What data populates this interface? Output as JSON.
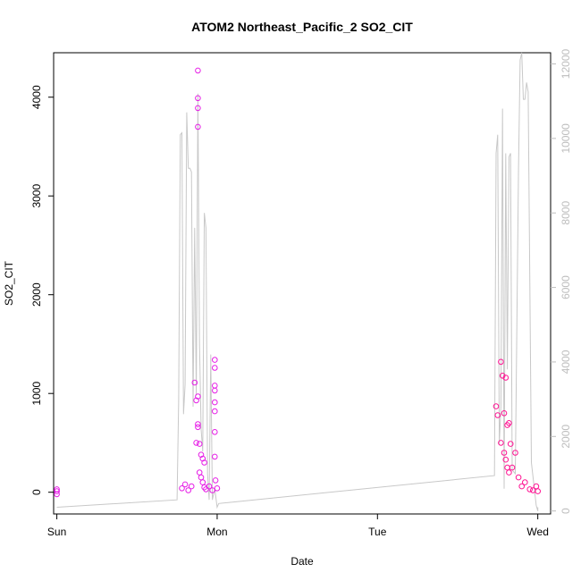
{
  "chart_data": {
    "type": "scatter",
    "title": "ATOM2 Northeast_Pacific_2 SO2_CIT",
    "xlabel": "Date",
    "ylabel": "SO2_CIT",
    "x_categories": [
      "Sun",
      "Mon",
      "Tue",
      "Wed"
    ],
    "xlim": [
      -0.02,
      3.08
    ],
    "ylim": [
      -220,
      4450
    ],
    "yticks": [
      0,
      1000,
      2000,
      3000,
      4000
    ],
    "y2lim": [
      -80,
      12300
    ],
    "y2ticks": [
      0,
      2000,
      4000,
      6000,
      8000,
      10000,
      12000
    ],
    "grid": false,
    "colors": {
      "early_points": "#e61ee6",
      "late_points": "#ff1493",
      "secondary_line": "#c8c8c8",
      "secondary_axis": "#bdbdbd"
    },
    "series": [
      {
        "values": [
          {
            "x": 0.0,
            "y": 10
          },
          {
            "x": 0.0,
            "y": -20
          },
          {
            "x": 0.0,
            "y": 30
          },
          {
            "x": 0.78,
            "y": 40
          },
          {
            "x": 0.8,
            "y": 80
          },
          {
            "x": 0.82,
            "y": 20
          },
          {
            "x": 0.84,
            "y": 60
          },
          {
            "x": 0.86,
            "y": 1110
          },
          {
            "x": 0.87,
            "y": 930
          },
          {
            "x": 0.88,
            "y": 4270
          },
          {
            "x": 0.88,
            "y": 3990
          },
          {
            "x": 0.88,
            "y": 3890
          },
          {
            "x": 0.88,
            "y": 3700
          },
          {
            "x": 0.88,
            "y": 970
          },
          {
            "x": 0.88,
            "y": 690
          },
          {
            "x": 0.88,
            "y": 660
          },
          {
            "x": 0.87,
            "y": 500
          },
          {
            "x": 0.89,
            "y": 490
          },
          {
            "x": 0.9,
            "y": 380
          },
          {
            "x": 0.91,
            "y": 340
          },
          {
            "x": 0.92,
            "y": 300
          },
          {
            "x": 0.89,
            "y": 200
          },
          {
            "x": 0.9,
            "y": 150
          },
          {
            "x": 0.91,
            "y": 100
          },
          {
            "x": 0.92,
            "y": 50
          },
          {
            "x": 0.93,
            "y": 30
          },
          {
            "x": 0.95,
            "y": 60
          },
          {
            "x": 0.97,
            "y": 20
          },
          {
            "x": 0.985,
            "y": 1340
          },
          {
            "x": 0.985,
            "y": 1260
          },
          {
            "x": 0.985,
            "y": 1080
          },
          {
            "x": 0.985,
            "y": 1030
          },
          {
            "x": 0.985,
            "y": 910
          },
          {
            "x": 0.985,
            "y": 820
          },
          {
            "x": 0.985,
            "y": 610
          },
          {
            "x": 0.985,
            "y": 360
          },
          {
            "x": 0.99,
            "y": 120
          },
          {
            "x": 1.0,
            "y": 40
          }
        ]
      },
      {
        "values": [
          {
            "x": 2.74,
            "y": 870
          },
          {
            "x": 2.75,
            "y": 780
          },
          {
            "x": 2.77,
            "y": 1320
          },
          {
            "x": 2.78,
            "y": 1180
          },
          {
            "x": 2.79,
            "y": 800
          },
          {
            "x": 2.8,
            "y": 1160
          },
          {
            "x": 2.81,
            "y": 680
          },
          {
            "x": 2.82,
            "y": 700
          },
          {
            "x": 2.83,
            "y": 490
          },
          {
            "x": 2.77,
            "y": 500
          },
          {
            "x": 2.79,
            "y": 400
          },
          {
            "x": 2.8,
            "y": 330
          },
          {
            "x": 2.81,
            "y": 250
          },
          {
            "x": 2.82,
            "y": 200
          },
          {
            "x": 2.84,
            "y": 250
          },
          {
            "x": 2.86,
            "y": 400
          },
          {
            "x": 2.88,
            "y": 150
          },
          {
            "x": 2.9,
            "y": 60
          },
          {
            "x": 2.92,
            "y": 100
          },
          {
            "x": 2.95,
            "y": 30
          },
          {
            "x": 2.97,
            "y": 20
          },
          {
            "x": 2.99,
            "y": 60
          },
          {
            "x": 3.0,
            "y": 10
          }
        ]
      },
      {
        "axis": "right",
        "values": [
          {
            "x": 0.0,
            "y": 100
          },
          {
            "x": 0.75,
            "y": 300
          },
          {
            "x": 0.76,
            "y": 3000
          },
          {
            "x": 0.77,
            "y": 10100
          },
          {
            "x": 0.78,
            "y": 10150
          },
          {
            "x": 0.79,
            "y": 2600
          },
          {
            "x": 0.8,
            "y": 3400
          },
          {
            "x": 0.81,
            "y": 10700
          },
          {
            "x": 0.82,
            "y": 9200
          },
          {
            "x": 0.83,
            "y": 9200
          },
          {
            "x": 0.84,
            "y": 9100
          },
          {
            "x": 0.85,
            "y": 2800
          },
          {
            "x": 0.86,
            "y": 7600
          },
          {
            "x": 0.87,
            "y": 3100
          },
          {
            "x": 0.88,
            "y": 11200
          },
          {
            "x": 0.89,
            "y": 4500
          },
          {
            "x": 0.9,
            "y": 2200
          },
          {
            "x": 0.91,
            "y": 1600
          },
          {
            "x": 0.92,
            "y": 8000
          },
          {
            "x": 0.93,
            "y": 7600
          },
          {
            "x": 0.94,
            "y": 1000
          },
          {
            "x": 0.95,
            "y": 300
          },
          {
            "x": 0.96,
            "y": 4200
          },
          {
            "x": 0.97,
            "y": 300
          },
          {
            "x": 0.985,
            "y": 600
          },
          {
            "x": 1.0,
            "y": 100
          },
          {
            "x": 1.01,
            "y": 200
          },
          {
            "x": 2.73,
            "y": 950
          },
          {
            "x": 2.74,
            "y": 9600
          },
          {
            "x": 2.75,
            "y": 10100
          },
          {
            "x": 2.76,
            "y": 1800
          },
          {
            "x": 2.77,
            "y": 2800
          },
          {
            "x": 2.78,
            "y": 10800
          },
          {
            "x": 2.79,
            "y": 600
          },
          {
            "x": 2.8,
            "y": 9600
          },
          {
            "x": 2.81,
            "y": 3800
          },
          {
            "x": 2.82,
            "y": 9500
          },
          {
            "x": 2.83,
            "y": 9600
          },
          {
            "x": 2.84,
            "y": 1100
          },
          {
            "x": 2.86,
            "y": 1000
          },
          {
            "x": 2.88,
            "y": 9200
          },
          {
            "x": 2.89,
            "y": 12100
          },
          {
            "x": 2.9,
            "y": 12300
          },
          {
            "x": 2.91,
            "y": 11050
          },
          {
            "x": 2.92,
            "y": 11050
          },
          {
            "x": 2.93,
            "y": 11500
          },
          {
            "x": 2.94,
            "y": 11250
          },
          {
            "x": 2.96,
            "y": 1300
          },
          {
            "x": 2.99,
            "y": 150
          },
          {
            "x": 3.0,
            "y": 0
          },
          {
            "x": 3.0,
            "y": 100
          }
        ]
      }
    ]
  }
}
